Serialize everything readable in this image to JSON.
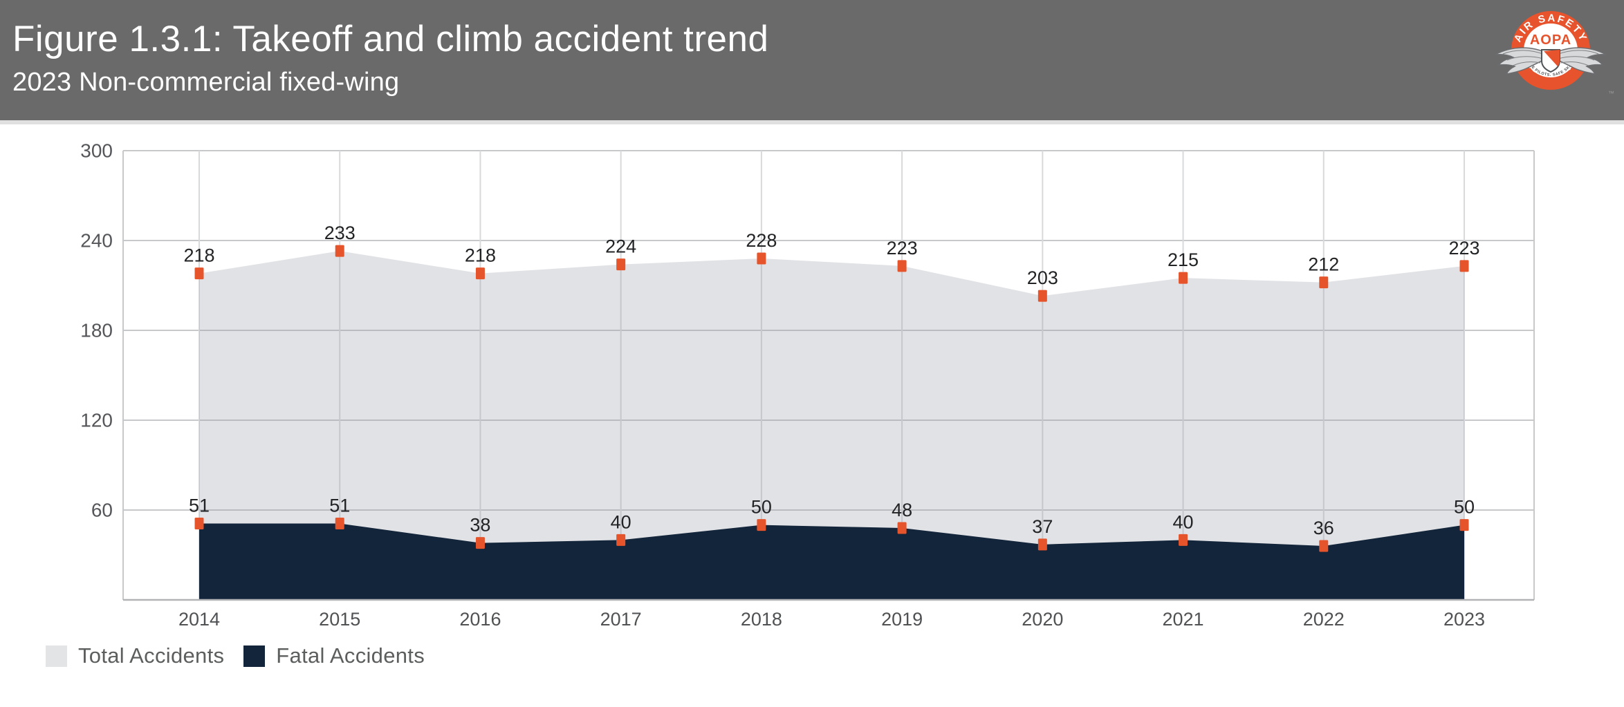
{
  "header": {
    "title": "Figure 1.3.1: Takeoff and climb accident trend",
    "subtitle": "2023 Non-commercial fixed-wing"
  },
  "logo": {
    "arc_top": "AIR SAFETY",
    "arc_bottom": "INSTITUTE",
    "center": "AOPA",
    "tagline": "SAFE PILOTS. SAFE SKIES.",
    "trademark": "™",
    "ring_color": "#e7532c",
    "center_text_color": "#e7532c"
  },
  "chart_data": {
    "type": "area",
    "title": "Figure 1.3.1: Takeoff and climb accident trend",
    "subtitle": "2023 Non-commercial fixed-wing",
    "categories": [
      "2014",
      "2015",
      "2016",
      "2017",
      "2018",
      "2019",
      "2020",
      "2021",
      "2022",
      "2023"
    ],
    "series": [
      {
        "name": "Total Accidents",
        "values": [
          218,
          233,
          218,
          224,
          228,
          223,
          203,
          215,
          212,
          223
        ],
        "fill": "rgba(154,160,168,0.30)",
        "legend_color": "#e3e4e6"
      },
      {
        "name": "Fatal Accidents",
        "values": [
          51,
          51,
          38,
          40,
          50,
          48,
          37,
          40,
          36,
          50
        ],
        "fill": "#13253a",
        "legend_color": "#13253a"
      }
    ],
    "marker_color": "#e5542b",
    "xlabel": "",
    "ylabel": "",
    "ylim": [
      0,
      300
    ],
    "yticks": [
      60,
      120,
      180,
      240,
      300
    ],
    "grid": true,
    "gridline_color_h": "#c7c8ca",
    "gridline_color_v": "#d8d9db",
    "baseline_color": "#b2b3b5",
    "legend_position": "bottom-left"
  },
  "legend": {
    "items": [
      {
        "label": "Total Accidents",
        "color": "#e3e4e6"
      },
      {
        "label": "Fatal Accidents",
        "color": "#13253a"
      }
    ]
  }
}
